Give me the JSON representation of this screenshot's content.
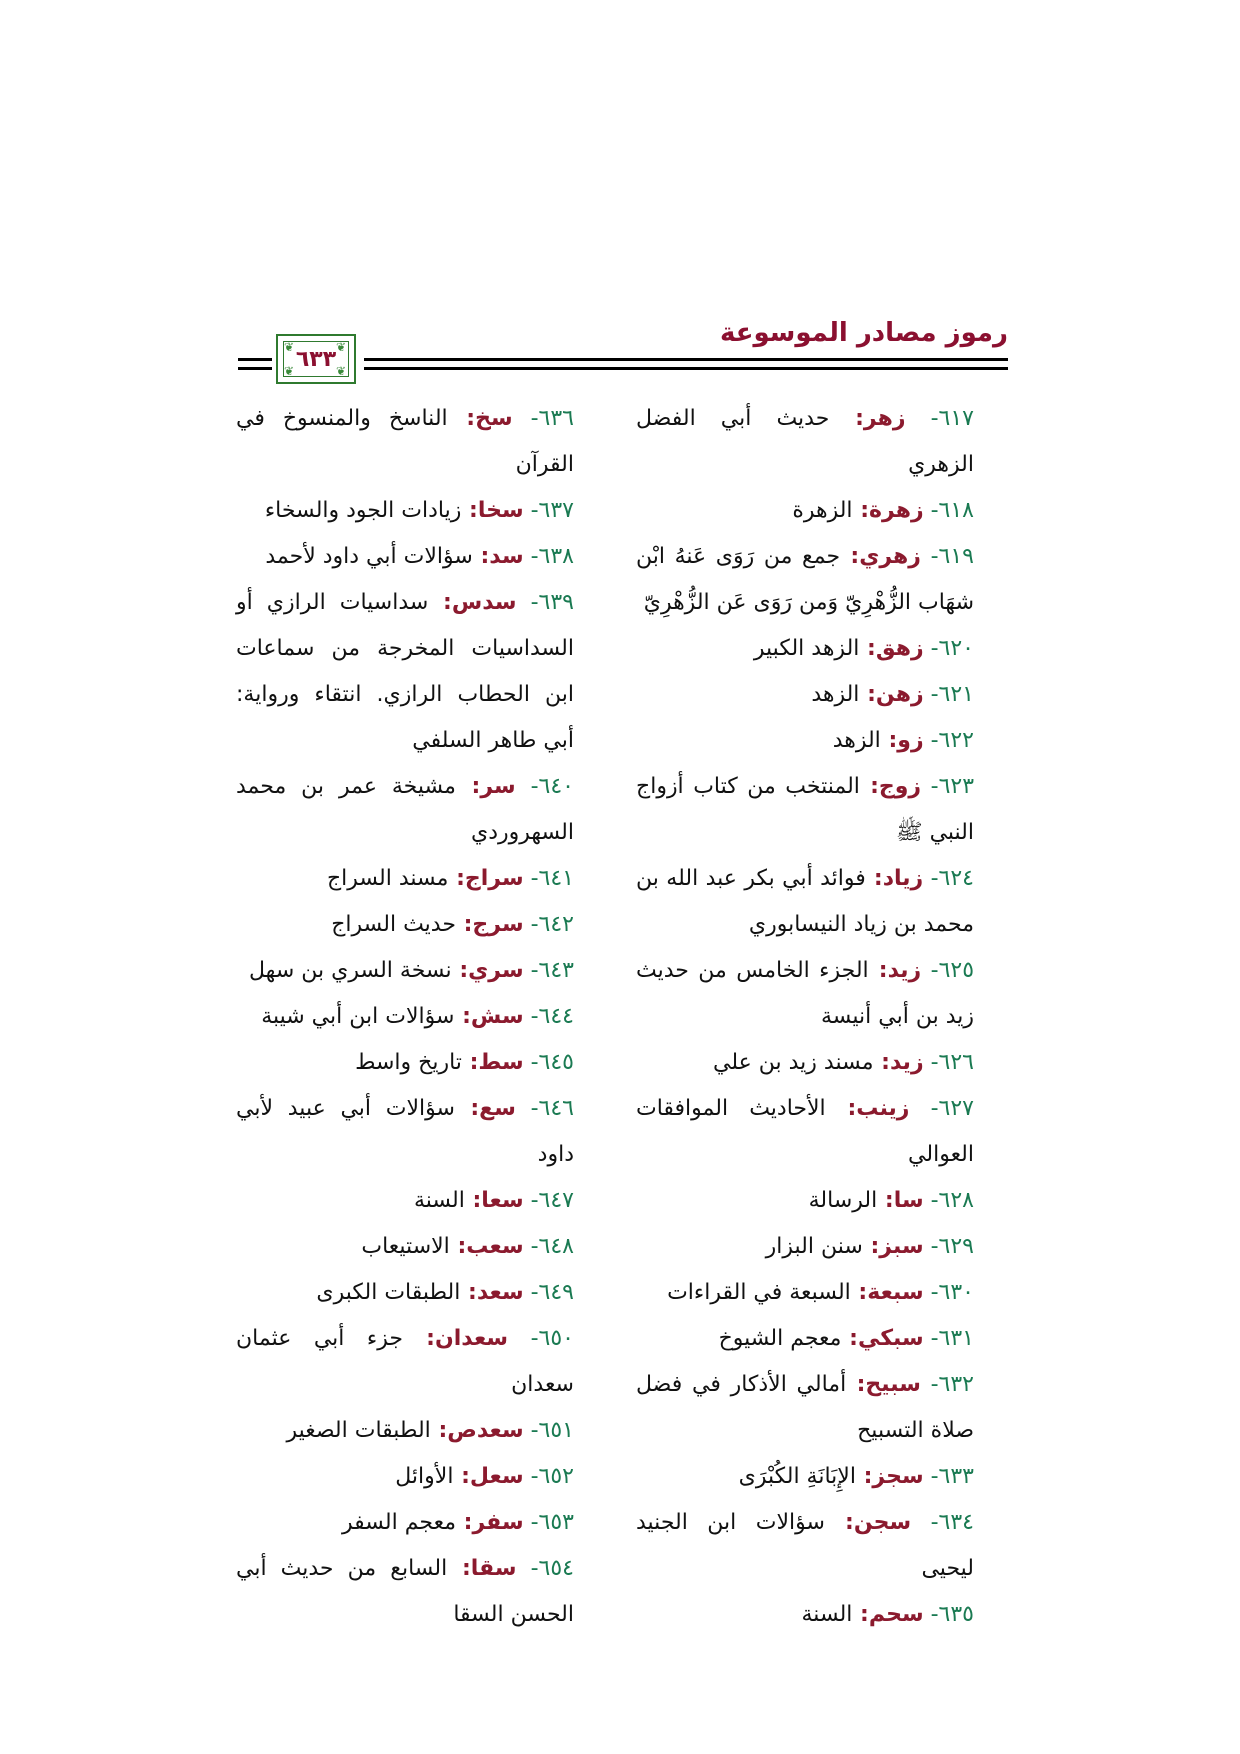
{
  "header": {
    "title": "رموز مصادر الموسوعة",
    "page_number": "٦٣٣"
  },
  "colors": {
    "number": "#1a7a52",
    "code": "#8b1a2e",
    "title": "#8b1030",
    "page_box_border": "#2f7a2f"
  },
  "right_column": [
    {
      "num": "٦١٧",
      "code": "زهر",
      "text": "حديث أبي الفضل الزهري"
    },
    {
      "num": "٦١٨",
      "code": "زهرة",
      "text": "الزهرة"
    },
    {
      "num": "٦١٩",
      "code": "زهري",
      "text": "جمع من رَوَى عَنهُ ابْن شهَاب الزُّهْرِيّ وَمن رَوَى عَن الزُّهْرِيّ"
    },
    {
      "num": "٦٢٠",
      "code": "زهق",
      "text": "الزهد الكبير"
    },
    {
      "num": "٦٢١",
      "code": "زهن",
      "text": "الزهد"
    },
    {
      "num": "٦٢٢",
      "code": "زو",
      "text": "الزهد"
    },
    {
      "num": "٦٢٣",
      "code": "زوج",
      "text": "المنتخب من كتاب أزواج النبي ﷺ"
    },
    {
      "num": "٦٢٤",
      "code": "زياد",
      "text": "فوائد أبي بكر عبد الله بن محمد بن زياد النيسابوري"
    },
    {
      "num": "٦٢٥",
      "code": "زيد",
      "text": "الجزء الخامس من حديث زيد بن أبي أنيسة"
    },
    {
      "num": "٦٢٦",
      "code": "زيد",
      "text": "مسند زيد بن علي"
    },
    {
      "num": "٦٢٧",
      "code": "زينب",
      "text": "الأحاديث الموافقات العوالي"
    },
    {
      "num": "٦٢٨",
      "code": "سا",
      "text": "الرسالة"
    },
    {
      "num": "٦٢٩",
      "code": "سبز",
      "text": "سنن البزار"
    },
    {
      "num": "٦٣٠",
      "code": "سبعة",
      "text": "السبعة في القراءات"
    },
    {
      "num": "٦٣١",
      "code": "سبكي",
      "text": "معجم الشيوخ"
    },
    {
      "num": "٦٣٢",
      "code": "سبيح",
      "text": "أمالي الأذكار في فضل صلاة التسبيح"
    },
    {
      "num": "٦٣٣",
      "code": "سجز",
      "text": "الإِبَانَةِ الكُبْرَى"
    },
    {
      "num": "٦٣٤",
      "code": "سجن",
      "text": "سؤالات ابن الجنيد ليحيى"
    },
    {
      "num": "٦٣٥",
      "code": "سحم",
      "text": "السنة"
    }
  ],
  "left_column": [
    {
      "num": "٦٣٦",
      "code": "سخ",
      "text": "الناسخ والمنسوخ في القرآن"
    },
    {
      "num": "٦٣٧",
      "code": "سخا",
      "text": "زيادات الجود والسخاء"
    },
    {
      "num": "٦٣٨",
      "code": "سد",
      "text": "سؤالات أبي داود لأحمد"
    },
    {
      "num": "٦٣٩",
      "code": "سدس",
      "text": "سداسيات الرازي أو السداسيات المخرجة من سماعات ابن الحطاب الرازي. انتقاء ورواية: أبي طاهر السلفي"
    },
    {
      "num": "٦٤٠",
      "code": "سر",
      "text": "مشيخة عمر بن محمد السهروردي"
    },
    {
      "num": "٦٤١",
      "code": "سراج",
      "text": "مسند السراج"
    },
    {
      "num": "٦٤٢",
      "code": "سرج",
      "text": "حديث السراج"
    },
    {
      "num": "٦٤٣",
      "code": "سري",
      "text": "نسخة السري بن سهل"
    },
    {
      "num": "٦٤٤",
      "code": "سش",
      "text": "سؤالات ابن أبي شيبة"
    },
    {
      "num": "٦٤٥",
      "code": "سط",
      "text": "تاريخ واسط"
    },
    {
      "num": "٦٤٦",
      "code": "سع",
      "text": "سؤالات أبي عبيد لأبي داود"
    },
    {
      "num": "٦٤٧",
      "code": "سعا",
      "text": "السنة"
    },
    {
      "num": "٦٤٨",
      "code": "سعب",
      "text": "الاستيعاب"
    },
    {
      "num": "٦٤٩",
      "code": "سعد",
      "text": "الطبقات الكبرى"
    },
    {
      "num": "٦٥٠",
      "code": "سعدان",
      "text": "جزء أبي عثمان سعدان"
    },
    {
      "num": "٦٥١",
      "code": "سعدص",
      "text": "الطبقات الصغير"
    },
    {
      "num": "٦٥٢",
      "code": "سعل",
      "text": "الأوائل"
    },
    {
      "num": "٦٥٣",
      "code": "سفر",
      "text": "معجم السفر"
    },
    {
      "num": "٦٥٤",
      "code": "سقا",
      "text": "السابع من حديث أبي الحسن السقا"
    }
  ]
}
